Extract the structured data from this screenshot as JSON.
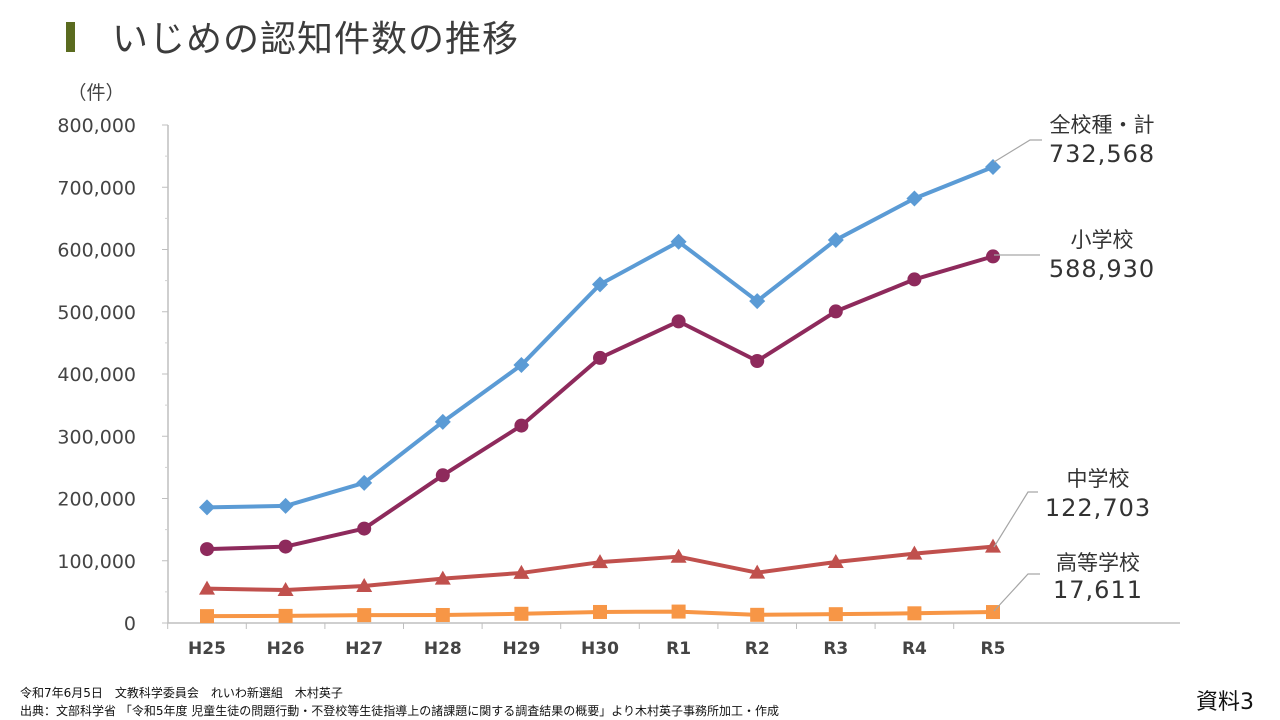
{
  "page": {
    "title": "いじめの認知件数の推移",
    "footer_line1": "令和7年6月5日　文教科学委員会　れいわ新選組　木村英子",
    "footer_line2": "出典：文部科学省 「令和5年度 児童生徒の問題行動・不登校等生徒指導上の諸課題に関する調査結果の概要」より木村英子事務所加工・作成",
    "doc_label": "資料3"
  },
  "chart_data": {
    "type": "line",
    "title": "いじめの認知件数の推移",
    "ylabel": "（件）",
    "xlabel": "",
    "ylim": [
      0,
      800000
    ],
    "yticks": [
      0,
      100000,
      200000,
      300000,
      400000,
      500000,
      600000,
      700000,
      800000
    ],
    "ytick_labels": [
      "0",
      "100,000",
      "200,000",
      "300,000",
      "400,000",
      "500,000",
      "600,000",
      "700,000",
      "800,000"
    ],
    "categories": [
      "H25",
      "H26",
      "H27",
      "H28",
      "H29",
      "H30",
      "R1",
      "R2",
      "R3",
      "R4",
      "R5"
    ],
    "grid": false,
    "series": [
      {
        "name": "全校種・計",
        "color": "#5b9bd5",
        "marker": "diamond",
        "label_value": "732,568",
        "values": [
          185803,
          188072,
          225132,
          323143,
          414378,
          543933,
          612496,
          517163,
          615351,
          681948,
          732568
        ]
      },
      {
        "name": "小学校",
        "color": "#8e2a5c",
        "marker": "circle",
        "label_value": "588,930",
        "values": [
          118748,
          122734,
          151692,
          237256,
          317121,
          425844,
          484545,
          420897,
          500562,
          551944,
          588930
        ]
      },
      {
        "name": "中学校",
        "color": "#c0504d",
        "marker": "triangle",
        "label_value": "122,703",
        "values": [
          55248,
          52971,
          59502,
          71309,
          80424,
          97704,
          106524,
          80877,
          97937,
          111404,
          122703
        ]
      },
      {
        "name": "高等学校",
        "color": "#f79646",
        "marker": "square",
        "label_value": "17,611",
        "values": [
          11039,
          11404,
          12664,
          12874,
          14789,
          17709,
          18352,
          13126,
          14157,
          15568,
          17611
        ]
      }
    ]
  }
}
